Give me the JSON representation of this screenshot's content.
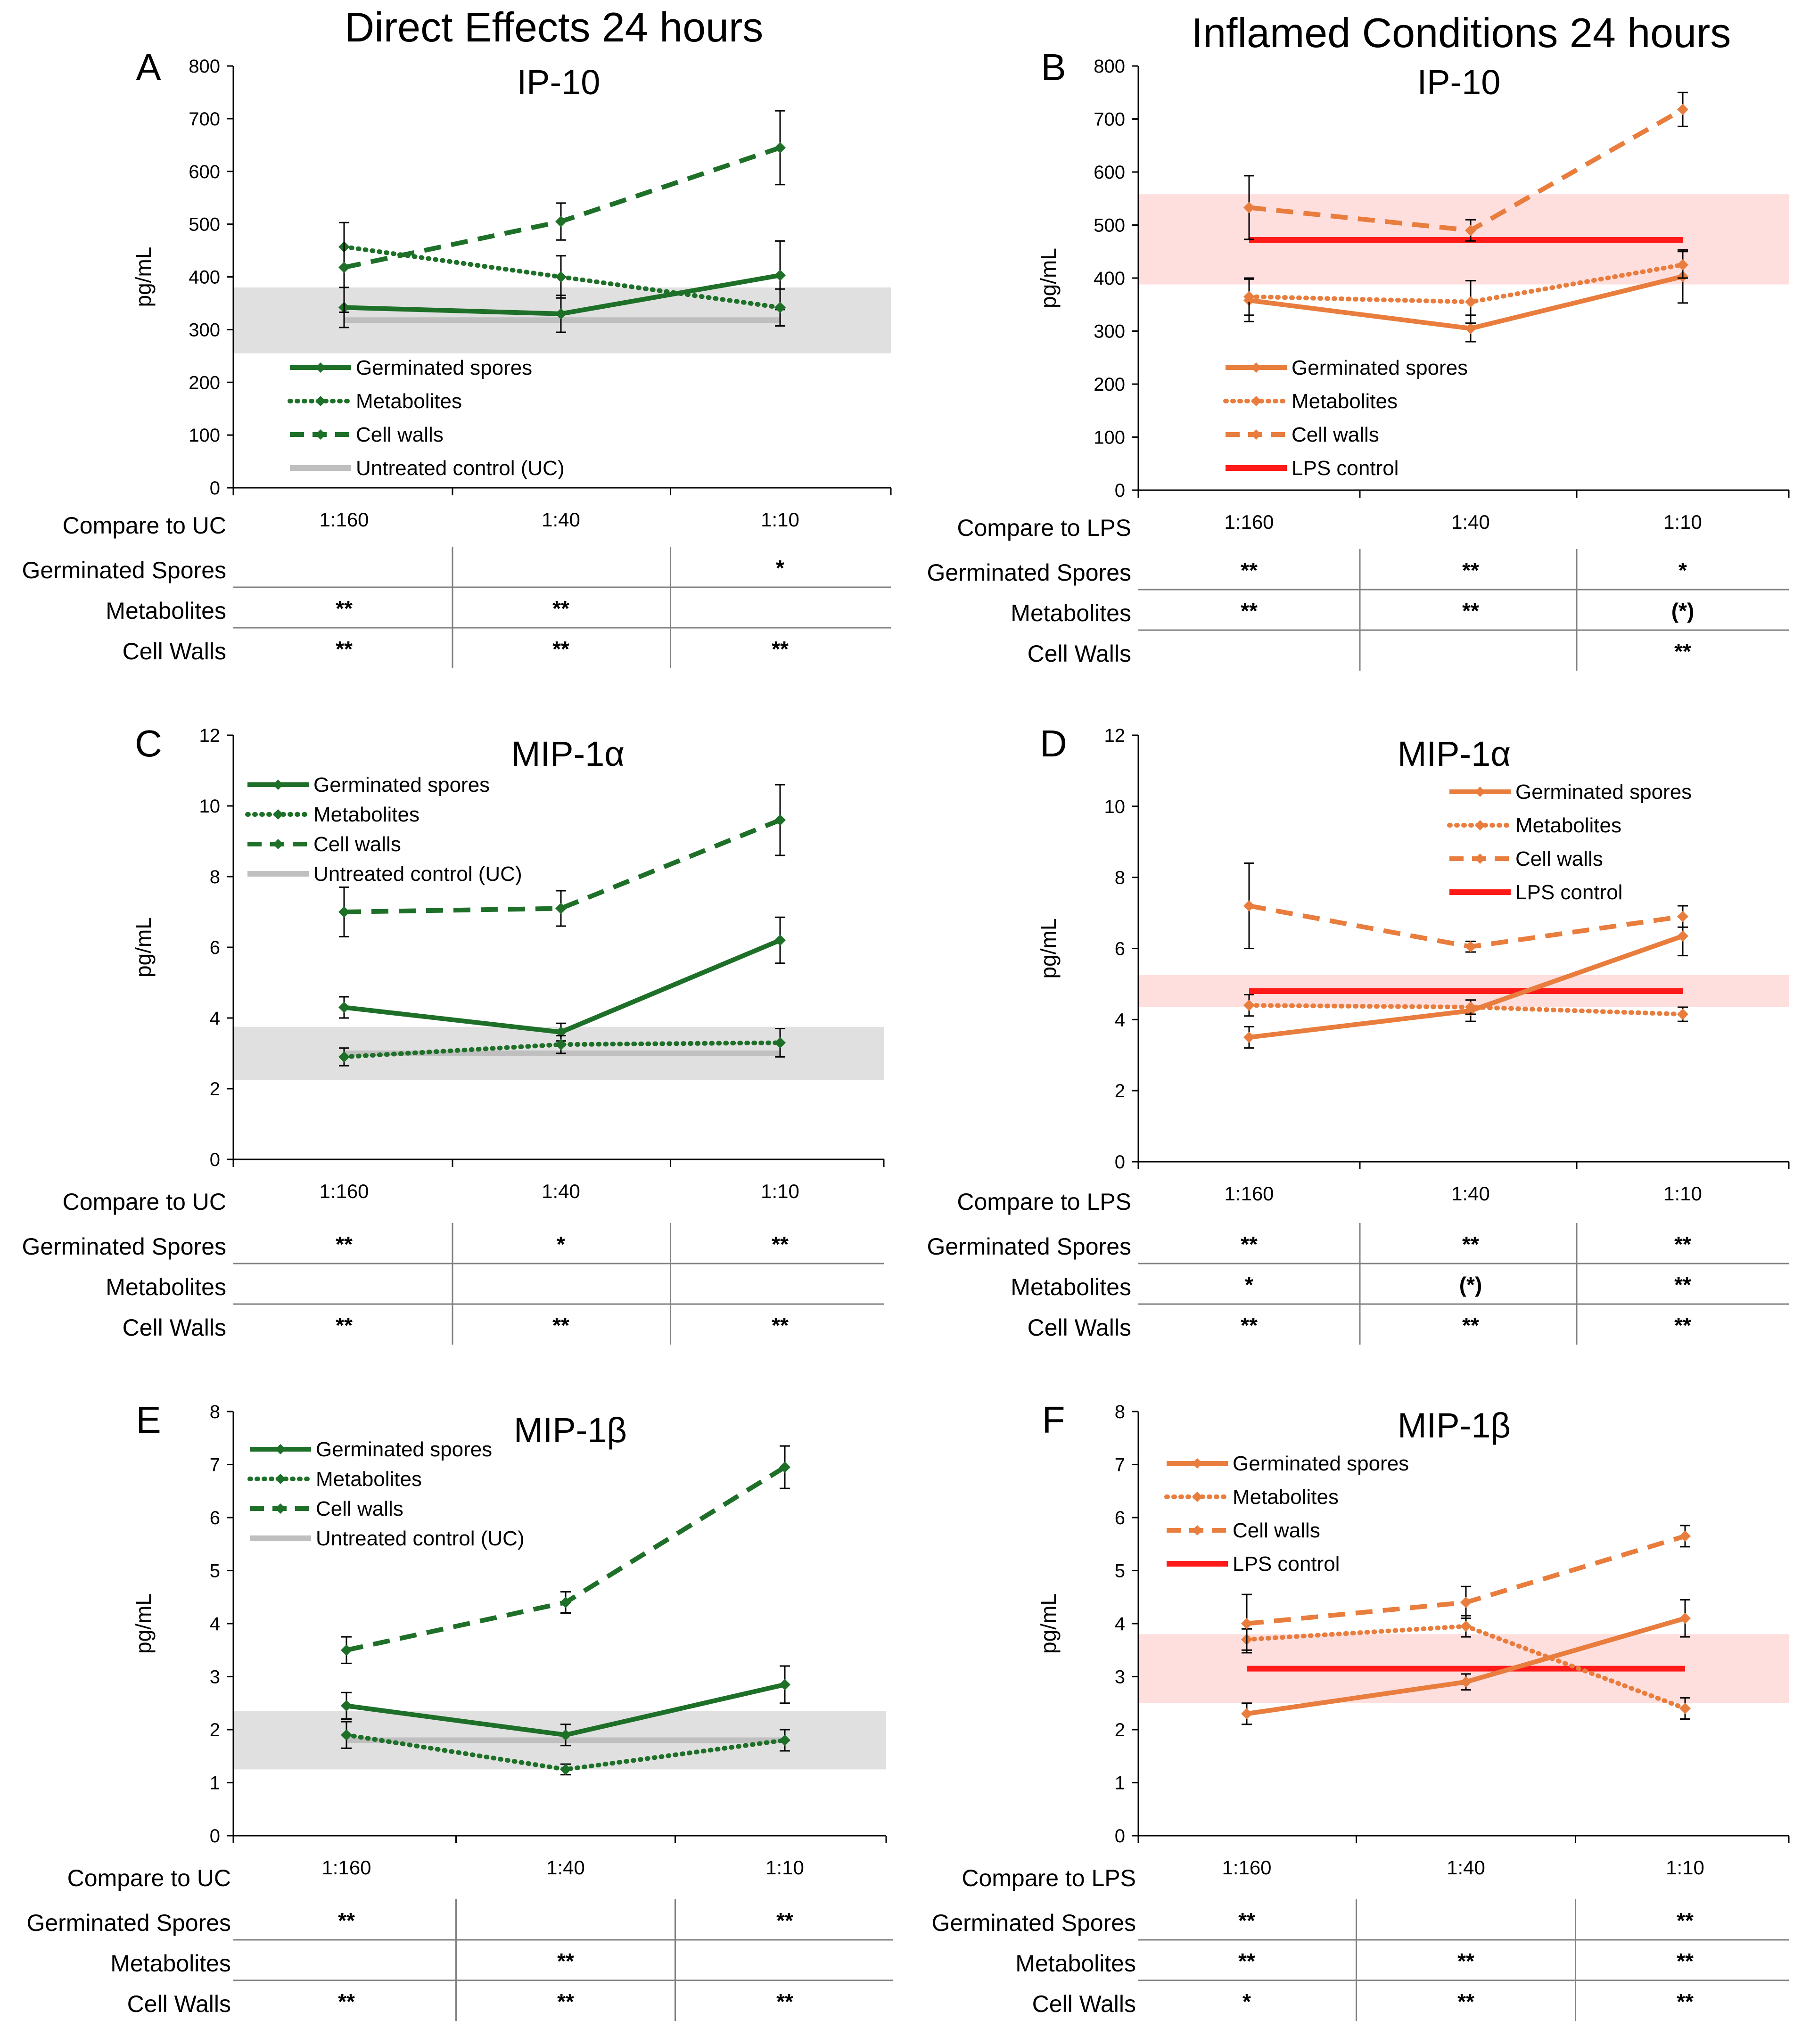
{
  "header": {
    "left_title": "Direct Effects 24 hours",
    "right_title": "Inflamed Conditions 24 hours"
  },
  "colors": {
    "green": "#1e7028",
    "orange": "#e87d3e",
    "lps": "#ff1a1a",
    "uc_line": "#bfbfbf",
    "uc_band": "#e0e0e0",
    "lps_band": "#ffdede",
    "axis": "#000000",
    "table_line": "#808080"
  },
  "chart_data": [
    {
      "panel": "A",
      "type": "line",
      "title": "IP-10",
      "ylabel": "pg/mL",
      "ylim": [
        0,
        800
      ],
      "yticks": [
        0,
        100,
        200,
        300,
        400,
        500,
        600,
        700,
        800
      ],
      "categories": [
        "1:160",
        "1:40",
        "1:10"
      ],
      "theme": "green",
      "series": [
        {
          "name": "Germinated spores",
          "style": "solid",
          "values": [
            342,
            330,
            403
          ],
          "errors": [
            38,
            35,
            65
          ]
        },
        {
          "name": "Metabolites",
          "style": "dotted",
          "values": [
            457,
            400,
            342
          ],
          "errors": [
            0,
            40,
            35
          ]
        },
        {
          "name": "Cell walls",
          "style": "dashed",
          "values": [
            418,
            505,
            645
          ],
          "errors": [
            85,
            35,
            70
          ]
        }
      ],
      "reference": {
        "name": "Untreated control (UC)",
        "value": 318,
        "band": [
          255,
          380
        ]
      },
      "legend": [
        "Germinated spores",
        "Metabolites",
        "Cell walls",
        "Untreated control (UC)"
      ],
      "legend_position": "bottom-left",
      "table": {
        "title": "Compare to UC",
        "rows": [
          {
            "label": "Germinated Spores",
            "cells": [
              "",
              "",
              "*"
            ]
          },
          {
            "label": "Metabolites",
            "cells": [
              "**",
              "**",
              ""
            ]
          },
          {
            "label": "Cell Walls",
            "cells": [
              "**",
              "**",
              "**"
            ]
          }
        ]
      }
    },
    {
      "panel": "B",
      "type": "line",
      "title": "IP-10",
      "ylabel": "pg/mL",
      "ylim": [
        0,
        800
      ],
      "yticks": [
        0,
        100,
        200,
        300,
        400,
        500,
        600,
        700,
        800
      ],
      "categories": [
        "1:160",
        "1:40",
        "1:10"
      ],
      "theme": "orange",
      "series": [
        {
          "name": "Germinated spores",
          "style": "solid",
          "values": [
            358,
            305,
            403
          ],
          "errors": [
            40,
            25,
            50
          ]
        },
        {
          "name": "Metabolites",
          "style": "dotted",
          "values": [
            365,
            355,
            425
          ],
          "errors": [
            35,
            40,
            25
          ]
        },
        {
          "name": "Cell walls",
          "style": "dashed",
          "values": [
            533,
            490,
            718
          ],
          "errors": [
            60,
            20,
            32
          ]
        }
      ],
      "reference": {
        "name": "LPS control",
        "value": 472,
        "band": [
          388,
          558
        ]
      },
      "legend": [
        "Germinated spores",
        "Metabolites",
        "Cell walls",
        "LPS control"
      ],
      "legend_position": "bottom-left",
      "table": {
        "title": "Compare to LPS",
        "rows": [
          {
            "label": "Germinated Spores",
            "cells": [
              "**",
              "**",
              "*"
            ]
          },
          {
            "label": "Metabolites",
            "cells": [
              "**",
              "**",
              "(*)"
            ]
          },
          {
            "label": "Cell Walls",
            "cells": [
              "",
              "",
              "**"
            ]
          }
        ]
      }
    },
    {
      "panel": "C",
      "type": "line",
      "title": "MIP-1α",
      "ylabel": "pg/mL",
      "ylim": [
        0,
        12
      ],
      "yticks": [
        0,
        2,
        4,
        6,
        8,
        10,
        12
      ],
      "categories": [
        "1:160",
        "1:40",
        "1:10"
      ],
      "theme": "green",
      "series": [
        {
          "name": "Germinated spores",
          "style": "solid",
          "values": [
            4.3,
            3.6,
            6.2
          ],
          "errors": [
            0.3,
            0.25,
            0.65
          ]
        },
        {
          "name": "Metabolites",
          "style": "dotted",
          "values": [
            2.9,
            3.25,
            3.3
          ],
          "errors": [
            0.25,
            0.25,
            0.4
          ]
        },
        {
          "name": "Cell walls",
          "style": "dashed",
          "values": [
            7.0,
            7.1,
            9.6
          ],
          "errors": [
            0.7,
            0.5,
            1.0
          ]
        }
      ],
      "reference": {
        "name": "Untreated control (UC)",
        "value": 3.0,
        "band": [
          2.25,
          3.75
        ]
      },
      "legend": [
        "Germinated spores",
        "Metabolites",
        "Cell walls",
        "Untreated control (UC)"
      ],
      "legend_position": "top-left",
      "table": {
        "title": "Compare to UC",
        "rows": [
          {
            "label": "Germinated Spores",
            "cells": [
              "**",
              "*",
              "**"
            ]
          },
          {
            "label": "Metabolites",
            "cells": [
              "",
              "",
              ""
            ]
          },
          {
            "label": "Cell Walls",
            "cells": [
              "**",
              "**",
              "**"
            ]
          }
        ]
      }
    },
    {
      "panel": "D",
      "type": "line",
      "title": "MIP-1α",
      "ylabel": "pg/mL",
      "ylim": [
        0,
        12
      ],
      "yticks": [
        0,
        2,
        4,
        6,
        8,
        10,
        12
      ],
      "categories": [
        "1:160",
        "1:40",
        "1:10"
      ],
      "theme": "orange",
      "series": [
        {
          "name": "Germinated spores",
          "style": "solid",
          "values": [
            3.5,
            4.25,
            6.35
          ],
          "errors": [
            0.3,
            0.3,
            0.55
          ]
        },
        {
          "name": "Metabolites",
          "style": "dotted",
          "values": [
            4.4,
            4.35,
            4.15
          ],
          "errors": [
            0.3,
            0.2,
            0.2
          ]
        },
        {
          "name": "Cell walls",
          "style": "dashed",
          "values": [
            7.2,
            6.05,
            6.9
          ],
          "errors": [
            1.2,
            0.15,
            0.3
          ]
        }
      ],
      "reference": {
        "name": "LPS control",
        "value": 4.8,
        "band": [
          4.35,
          5.25
        ]
      },
      "legend": [
        "Germinated spores",
        "Metabolites",
        "Cell walls",
        "LPS control"
      ],
      "legend_position": "top-right",
      "table": {
        "title": "Compare to LPS",
        "rows": [
          {
            "label": "Germinated Spores",
            "cells": [
              "**",
              "**",
              "**"
            ]
          },
          {
            "label": "Metabolites",
            "cells": [
              "*",
              "(*)",
              "**"
            ]
          },
          {
            "label": "Cell Walls",
            "cells": [
              "**",
              "**",
              "**"
            ]
          }
        ]
      }
    },
    {
      "panel": "E",
      "type": "line",
      "title": "MIP-1β",
      "ylabel": "pg/mL",
      "ylim": [
        0,
        8
      ],
      "yticks": [
        0,
        1,
        2,
        3,
        4,
        5,
        6,
        7,
        8
      ],
      "categories": [
        "1:160",
        "1:40",
        "1:10"
      ],
      "theme": "green",
      "series": [
        {
          "name": "Germinated spores",
          "style": "solid",
          "values": [
            2.45,
            1.9,
            2.85
          ],
          "errors": [
            0.25,
            0.2,
            0.35
          ]
        },
        {
          "name": "Metabolites",
          "style": "dotted",
          "values": [
            1.9,
            1.25,
            1.8
          ],
          "errors": [
            0.25,
            0.1,
            0.2
          ]
        },
        {
          "name": "Cell walls",
          "style": "dashed",
          "values": [
            3.5,
            4.4,
            6.95
          ],
          "errors": [
            0.25,
            0.2,
            0.4
          ]
        }
      ],
      "reference": {
        "name": "Untreated control (UC)",
        "value": 1.8,
        "band": [
          1.25,
          2.35
        ]
      },
      "legend": [
        "Germinated spores",
        "Metabolites",
        "Cell walls",
        "Untreated control (UC)"
      ],
      "legend_position": "top-left",
      "table": {
        "title": "Compare to UC",
        "rows": [
          {
            "label": "Germinated Spores",
            "cells": [
              "**",
              "",
              "**"
            ]
          },
          {
            "label": "Metabolites",
            "cells": [
              "",
              "**",
              ""
            ]
          },
          {
            "label": "Cell Walls",
            "cells": [
              "**",
              "**",
              "**"
            ]
          }
        ]
      }
    },
    {
      "panel": "F",
      "type": "line",
      "title": "MIP-1β",
      "ylabel": "pg/mL",
      "ylim": [
        0,
        8
      ],
      "yticks": [
        0,
        1,
        2,
        3,
        4,
        5,
        6,
        7,
        8
      ],
      "categories": [
        "1:160",
        "1:40",
        "1:10"
      ],
      "theme": "orange",
      "series": [
        {
          "name": "Germinated spores",
          "style": "solid",
          "values": [
            2.3,
            2.9,
            4.1
          ],
          "errors": [
            0.2,
            0.15,
            0.35
          ]
        },
        {
          "name": "Metabolites",
          "style": "dotted",
          "values": [
            3.7,
            3.95,
            2.4
          ],
          "errors": [
            0.2,
            0.2,
            0.2
          ]
        },
        {
          "name": "Cell walls",
          "style": "dashed",
          "values": [
            4.0,
            4.4,
            5.65
          ],
          "errors": [
            0.55,
            0.3,
            0.2
          ]
        }
      ],
      "reference": {
        "name": "LPS control",
        "value": 3.15,
        "band": [
          2.5,
          3.8
        ]
      },
      "legend": [
        "Germinated spores",
        "Metabolites",
        "Cell walls",
        "LPS control"
      ],
      "legend_position": "top-left",
      "table": {
        "title": "Compare to LPS",
        "rows": [
          {
            "label": "Germinated Spores",
            "cells": [
              "**",
              "",
              "**"
            ]
          },
          {
            "label": "Metabolites",
            "cells": [
              "**",
              "**",
              "**"
            ]
          },
          {
            "label": "Cell Walls",
            "cells": [
              "*",
              "**",
              "**"
            ]
          }
        ]
      }
    }
  ]
}
